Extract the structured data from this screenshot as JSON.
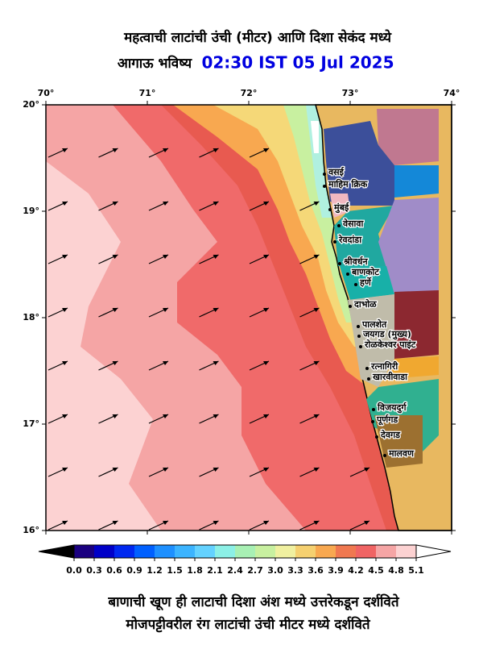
{
  "header": {
    "title": "महत्वाची लाटांची उंची (मीटर) आणि दिशा सेकंद मध्ये",
    "subtitle": "आगाऊ भविष्य",
    "forecast_time": "02:30 IST 05 Jul 2025"
  },
  "map": {
    "lon_ticks": [
      {
        "value": 70,
        "label": "70°"
      },
      {
        "value": 71,
        "label": "71°"
      },
      {
        "value": 72,
        "label": "72°"
      },
      {
        "value": 73,
        "label": "73°"
      },
      {
        "value": 74,
        "label": "74°"
      }
    ],
    "lat_ticks": [
      {
        "value": 20,
        "label": "20°"
      },
      {
        "value": 19,
        "label": "19°"
      },
      {
        "value": 18,
        "label": "18°"
      },
      {
        "value": 17,
        "label": "17°"
      },
      {
        "value": 16,
        "label": "16°"
      }
    ],
    "places": [
      "वसई",
      "माहिम क्रिक",
      "मुंबई",
      "वेसावा",
      "रेवदांडा",
      "श्रीवर्धन",
      "बाणकोट",
      "हर्णे",
      "दाभोळ",
      "पालशेत",
      "जयगड (मुख्य)",
      "रोळकेश्वर पाइंट",
      "रत्नागिरी",
      "खारवीवाडा",
      "विजयदुर्ग",
      "पूर्णगड",
      "देवगड",
      "मालवण"
    ]
  },
  "colorbar": {
    "ticks": [
      {
        "value": 0,
        "label": "0.0"
      },
      0.3,
      0.6,
      0.9,
      1.2,
      1.5,
      1.8,
      2.1,
      2.4,
      2.7,
      {
        "value": 3,
        "label": "3.0"
      },
      3.3,
      3.6,
      3.9,
      4.2,
      4.5,
      4.8,
      5.1
    ],
    "colors": [
      "#1a0080",
      "#0000c8",
      "#0028f0",
      "#0060ff",
      "#1e90ff",
      "#3cb4ff",
      "#64d2ff",
      "#8cf0e6",
      "#a8f0b4",
      "#c8f0a0",
      "#f0f0a0",
      "#f5d070",
      "#f8a850",
      "#f07850",
      "#f06464",
      "#f5a5a5",
      "#fcd2d2"
    ]
  },
  "footer": {
    "lines": [
      "बाणाची खूण ही लाटाची दिशा अंश मध्ये उत्तरेकडून दर्शविते",
      "मोजपट्टीवरील रंग लाटांची उंची मीटर मध्ये दर्शविते"
    ]
  }
}
